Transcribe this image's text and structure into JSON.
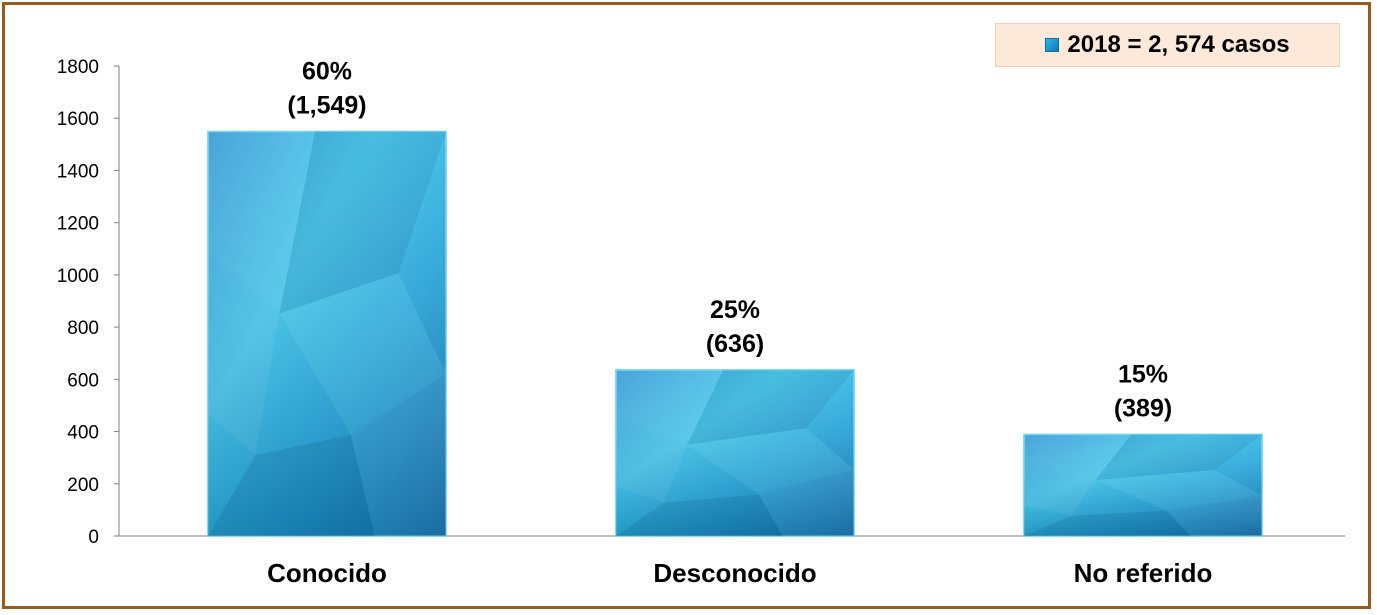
{
  "chart_data": {
    "type": "bar",
    "categories": [
      "Conocido",
      "Desconocido",
      "No referido"
    ],
    "series": [
      {
        "name": "2018 = 2, 574 casos",
        "values": [
          1549,
          636,
          389
        ]
      }
    ],
    "data_labels": [
      {
        "percent": "60%",
        "count": "(1,549)"
      },
      {
        "percent": "25%",
        "count": "(636)"
      },
      {
        "percent": "15%",
        "count": "(389)"
      }
    ],
    "yticks": [
      "0",
      "200",
      "400",
      "600",
      "800",
      "1000",
      "1200",
      "1400",
      "1600",
      "1800"
    ],
    "ylim": [
      0,
      1800
    ],
    "grid": false,
    "legend_position": "top-right",
    "colors": {
      "bar_light": "#5fe0f5",
      "bar_mid": "#2aaee0",
      "bar_dark": "#0f6fa8",
      "frame": "#9b5a1a",
      "legend_bg": "#fde9d9"
    }
  },
  "legend": {
    "label": "2018 =  2, 574 casos"
  }
}
